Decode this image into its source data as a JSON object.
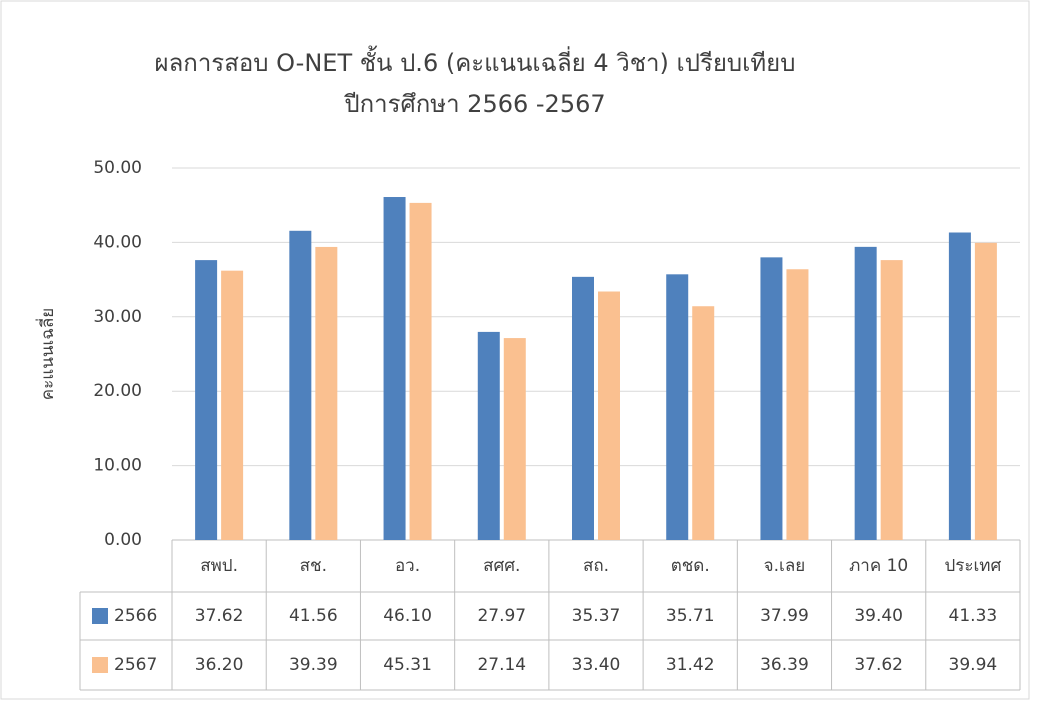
{
  "chart_data": {
    "type": "bar",
    "title": [
      "ผลการสอบ O-NET ชั้น ป.6 (คะแนนเฉลี่ย 4 วิชา) เปรียบเทียบ",
      "ปีการศึกษา 2566 -2567"
    ],
    "ylabel": "คะแนนเฉลี่ย",
    "categories": [
      "สพป.",
      "สช.",
      "อว.",
      "สศศ.",
      "สถ.",
      "ตชด.",
      "จ.เลย",
      "ภาค 10",
      "ประเทศ"
    ],
    "series": [
      {
        "name": "2566",
        "color": "#4f81bd",
        "values": [
          37.62,
          41.56,
          46.1,
          27.97,
          35.37,
          35.71,
          37.99,
          39.4,
          41.33
        ],
        "value_labels": [
          "37.62",
          "41.56",
          "46.10",
          "27.97",
          "35.37",
          "35.71",
          "37.99",
          "39.40",
          "41.33"
        ]
      },
      {
        "name": "2567",
        "color": "#fac090",
        "values": [
          36.2,
          39.39,
          45.31,
          27.14,
          33.4,
          31.42,
          36.39,
          37.62,
          39.94
        ],
        "value_labels": [
          "36.20",
          "39.39",
          "45.31",
          "27.14",
          "33.40",
          "31.42",
          "36.39",
          "37.62",
          "39.94"
        ]
      }
    ],
    "ylim": [
      0,
      50
    ],
    "yticks": [
      {
        "value": 0,
        "label": "0.00"
      },
      {
        "value": 10,
        "label": "10.00"
      },
      {
        "value": 20,
        "label": "20.00"
      },
      {
        "value": 30,
        "label": "30.00"
      },
      {
        "value": 40,
        "label": "40.00"
      },
      {
        "value": 50,
        "label": "50.00"
      }
    ],
    "grid": true
  }
}
